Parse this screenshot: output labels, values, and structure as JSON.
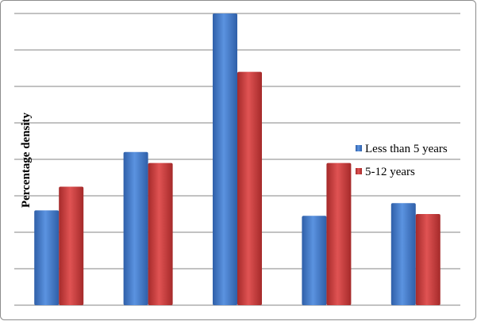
{
  "chart_data": {
    "type": "bar",
    "title": "",
    "xlabel": "",
    "ylabel": "Percentage density",
    "categories": [
      "",
      "",
      "",
      "",
      ""
    ],
    "ylim": [
      0,
      8
    ],
    "gridlines": true,
    "legend_position": "right",
    "series": [
      {
        "name": "Less than 5 years",
        "color": "#3c75c9",
        "values": [
          2.6,
          4.2,
          8.0,
          2.45,
          2.8
        ]
      },
      {
        "name": "5-12 years",
        "color": "#cc3a3a",
        "values": [
          3.25,
          3.9,
          6.4,
          3.9,
          2.5
        ]
      }
    ]
  }
}
